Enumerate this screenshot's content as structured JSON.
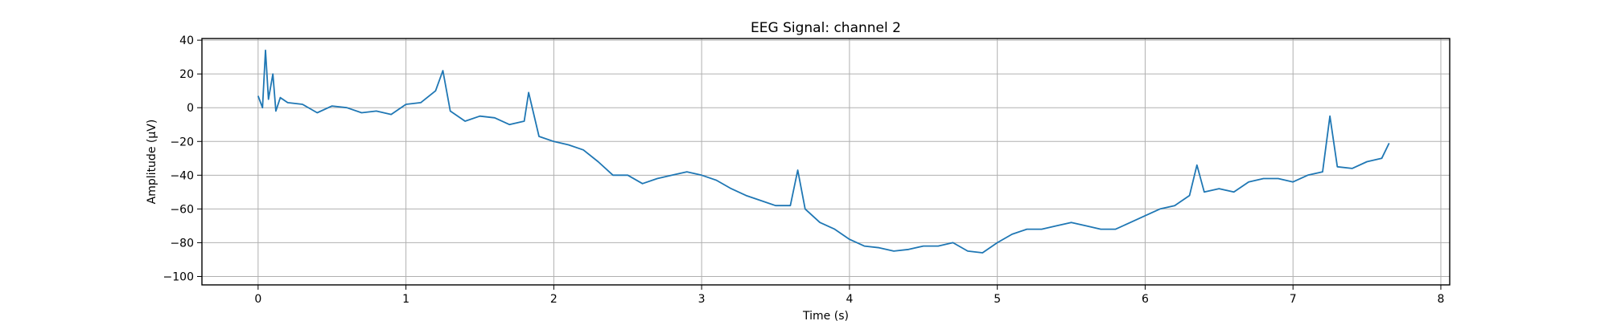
{
  "chart_data": {
    "type": "line",
    "title": "EEG Signal: channel 2",
    "xlabel": "Time (s)",
    "ylabel": "Amplitude (µV)",
    "xlim": [
      -0.38,
      8.06
    ],
    "ylim": [
      -105,
      41
    ],
    "xticks": [
      0,
      1,
      2,
      3,
      4,
      5,
      6,
      7,
      8
    ],
    "yticks": [
      40,
      20,
      0,
      -20,
      -40,
      -60,
      -80,
      -100
    ],
    "grid": true,
    "legend": "none",
    "line_color": "#1f77b4",
    "series": [
      {
        "x": [
          0.0,
          0.03,
          0.05,
          0.07,
          0.1,
          0.12,
          0.15,
          0.2,
          0.3,
          0.4,
          0.5,
          0.6,
          0.7,
          0.8,
          0.9,
          1.0,
          1.1,
          1.2,
          1.25,
          1.3,
          1.4,
          1.5,
          1.6,
          1.7,
          1.8,
          1.83,
          1.9,
          2.0,
          2.1,
          2.2,
          2.3,
          2.4,
          2.5,
          2.6,
          2.7,
          2.8,
          2.9,
          3.0,
          3.1,
          3.2,
          3.3,
          3.4,
          3.5,
          3.6,
          3.65,
          3.7,
          3.8,
          3.9,
          4.0,
          4.1,
          4.2,
          4.3,
          4.4,
          4.5,
          4.6,
          4.7,
          4.8,
          4.9,
          5.0,
          5.1,
          5.2,
          5.3,
          5.4,
          5.5,
          5.6,
          5.7,
          5.8,
          5.9,
          6.0,
          6.1,
          6.2,
          6.3,
          6.35,
          6.4,
          6.5,
          6.6,
          6.7,
          6.8,
          6.9,
          7.0,
          7.1,
          7.2,
          7.25,
          7.3,
          7.4,
          7.5,
          7.6,
          7.65
        ],
        "y": [
          7,
          0,
          34,
          5,
          20,
          -2,
          6,
          3,
          2,
          -3,
          1,
          0,
          -3,
          -2,
          -4,
          2,
          3,
          10,
          22,
          -2,
          -8,
          -5,
          -6,
          -10,
          -8,
          9,
          -17,
          -20,
          -22,
          -25,
          -32,
          -40,
          -40,
          -45,
          -42,
          -40,
          -38,
          -40,
          -43,
          -48,
          -52,
          -55,
          -58,
          -58,
          -37,
          -60,
          -68,
          -72,
          -78,
          -82,
          -83,
          -85,
          -84,
          -82,
          -82,
          -80,
          -85,
          -86,
          -80,
          -75,
          -72,
          -72,
          -70,
          -68,
          -70,
          -72,
          -72,
          -68,
          -64,
          -60,
          -58,
          -52,
          -34,
          -50,
          -48,
          -50,
          -44,
          -42,
          -42,
          -44,
          -40,
          -38,
          -5,
          -35,
          -36,
          -32,
          -30,
          -21
        ]
      }
    ]
  }
}
